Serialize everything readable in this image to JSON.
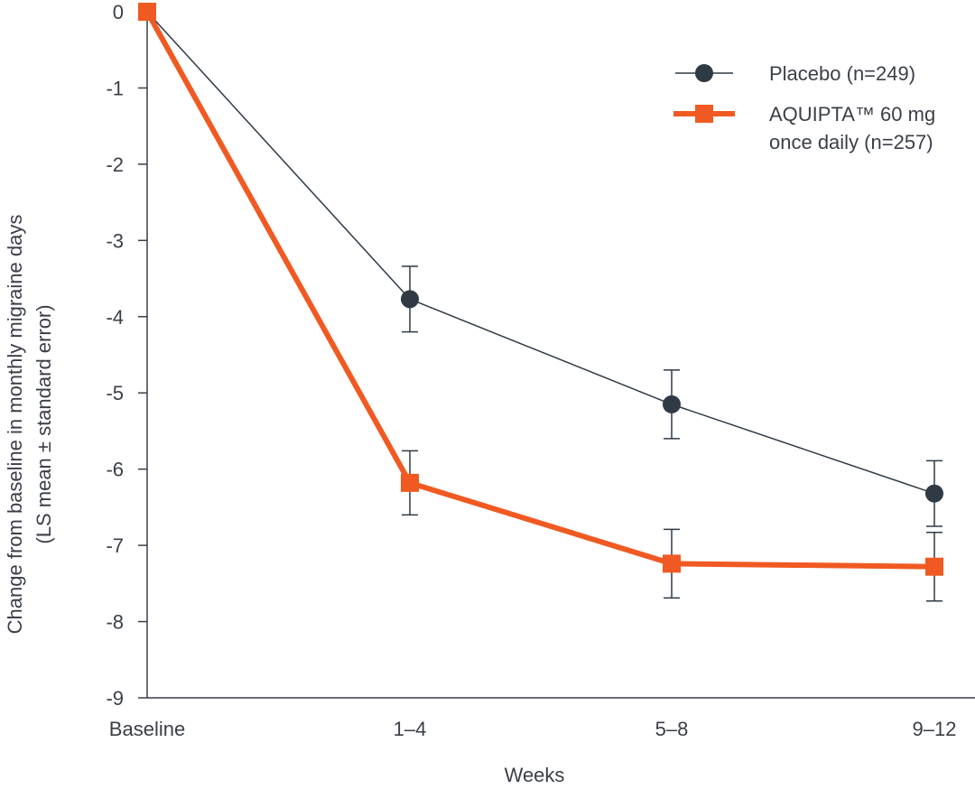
{
  "chart_data": {
    "type": "line",
    "title": "",
    "xlabel": "Weeks",
    "ylabel_line1": "Change from baseline in monthly migraine days",
    "ylabel_line2": "(LS mean ± standard error)",
    "categories": [
      "Baseline",
      "1–4",
      "5–8",
      "9–12"
    ],
    "y_ticks": [
      "0",
      "-1",
      "-2",
      "-3",
      "-4",
      "-5",
      "-6",
      "-7",
      "-8",
      "-9"
    ],
    "ylim": [
      -9,
      0
    ],
    "grid": false,
    "legend_position": "top-right",
    "series": [
      {
        "name_line1": "Placebo (n=249)",
        "name_line2": "",
        "values": [
          0,
          -3.77,
          -5.15,
          -6.32
        ],
        "error": [
          0,
          0.43,
          0.45,
          0.43
        ],
        "color": "#2f3a45",
        "marker": "circle"
      },
      {
        "name_line1": "AQUIPTA™ 60 mg",
        "name_line2": "once daily (n=257)",
        "values": [
          0,
          -6.18,
          -7.24,
          -7.28
        ],
        "error": [
          0,
          0.42,
          0.45,
          0.45
        ],
        "color": "#f05a22",
        "marker": "square"
      }
    ]
  }
}
